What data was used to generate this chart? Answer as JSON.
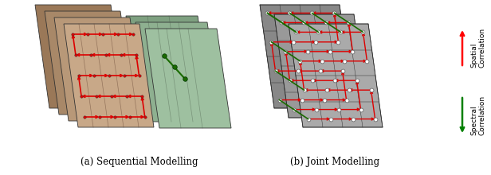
{
  "caption_a": "(a) Sequential Modelling",
  "caption_b": "(b) Joint Modelling",
  "spatial_label": "Spatial\nCorrelation",
  "spectral_label": "Spectral\nCorrelation",
  "bg_color": "#ffffff",
  "fig_width": 6.16,
  "fig_height": 2.2,
  "dpi": 100,
  "caption_fontsize": 8.5,
  "arrow_label_fontsize": 6.5,
  "red_color": "#dd0000",
  "dark_green_color": "#1a6b00",
  "sepia_light": "#d4b09a",
  "sepia_mid": "#b89070",
  "sepia_dark": "#8a6050",
  "green_light": "#b0c8b0",
  "green_mid": "#90b090",
  "green_dark": "#708870",
  "gray_light": "#aaaaaa",
  "gray_mid": "#888888",
  "gray_dark": "#666666"
}
